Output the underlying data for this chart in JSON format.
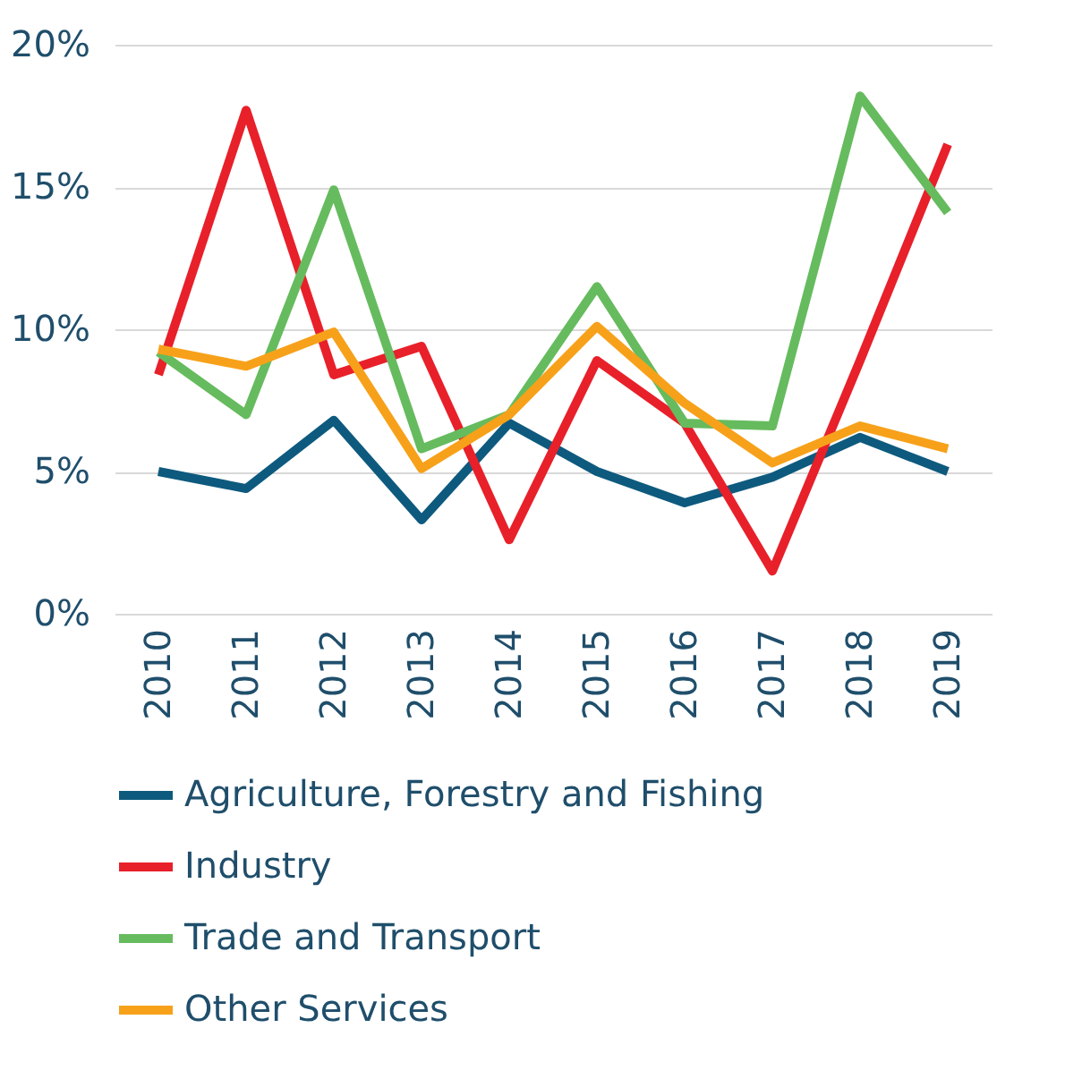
{
  "chart_data": {
    "type": "line",
    "categories": [
      "2010",
      "2011",
      "2012",
      "2013",
      "2014",
      "2015",
      "2016",
      "2017",
      "2018",
      "2019"
    ],
    "series": [
      {
        "name": "Agriculture, Forestry and Fishing",
        "color": "#0e5a7e",
        "values": [
          5.0,
          4.4,
          6.8,
          3.3,
          6.7,
          5.0,
          3.9,
          4.8,
          6.2,
          5.0
        ]
      },
      {
        "name": "Industry",
        "color": "#e8202a",
        "values": [
          8.4,
          17.7,
          8.4,
          9.4,
          2.6,
          8.9,
          6.7,
          1.5,
          8.9,
          16.5
        ]
      },
      {
        "name": "Trade and Transport",
        "color": "#66bb5e",
        "values": [
          9.2,
          7.0,
          14.9,
          5.8,
          7.0,
          11.5,
          6.7,
          6.6,
          18.2,
          14.1
        ]
      },
      {
        "name": "Other Services",
        "color": "#f7a11a",
        "values": [
          9.3,
          8.7,
          9.9,
          5.1,
          7.0,
          10.1,
          7.4,
          5.3,
          6.6,
          5.8
        ]
      }
    ],
    "ylim": [
      0,
      20
    ],
    "yticks": [
      {
        "value": 0,
        "label": "0%"
      },
      {
        "value": 5,
        "label": "5%"
      },
      {
        "value": 10,
        "label": "10%"
      },
      {
        "value": 15,
        "label": "15%"
      },
      {
        "value": 20,
        "label": "20%"
      }
    ],
    "grid": "y",
    "legend": "bottom",
    "marker": "none",
    "line_style": "solid"
  }
}
